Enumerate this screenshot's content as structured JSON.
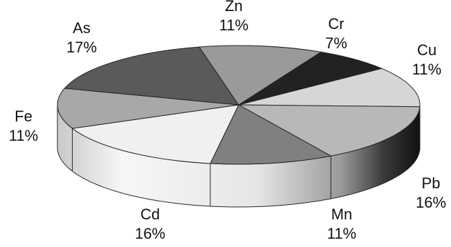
{
  "chart_data": {
    "type": "pie",
    "style": "3d-exploded-none",
    "slices": [
      {
        "label": "Cr",
        "value": 7,
        "pct_label": "7%",
        "color": "#222222"
      },
      {
        "label": "Cu",
        "value": 11,
        "pct_label": "11%",
        "color": "#d6d6d6"
      },
      {
        "label": "Pb",
        "value": 16,
        "pct_label": "16%",
        "color": "#b8b8b8"
      },
      {
        "label": "Mn",
        "value": 11,
        "pct_label": "11%",
        "color": "#808080"
      },
      {
        "label": "Cd",
        "value": 16,
        "pct_label": "16%",
        "color": "#f0f0f0"
      },
      {
        "label": "Fe",
        "value": 11,
        "pct_label": "11%",
        "color": "#a8a8a8"
      },
      {
        "label": "As",
        "value": 17,
        "pct_label": "17%",
        "color": "#5a5a5a"
      },
      {
        "label": "Zn",
        "value": 11,
        "pct_label": "11%",
        "color": "#9a9a9a"
      }
    ]
  }
}
